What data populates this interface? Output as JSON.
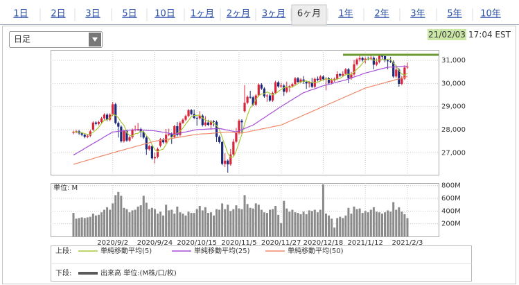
{
  "tabs": [
    "1日",
    "2日",
    "3日",
    "5日",
    "10日",
    "1ヶ月",
    "2ヶ月",
    "3ヶ月",
    "6ヶ月",
    "1年",
    "2年",
    "3年",
    "5年",
    "10年"
  ],
  "active_tab": 8,
  "dropdown": "日足",
  "timestamp": {
    "date": "21/02/03",
    "time": "17:04 EST"
  },
  "chart_data": [
    {
      "type": "candlestick",
      "legend_title": "上段:",
      "up_color": "#d8253c",
      "down_color": "#1b2a7a",
      "grid": true,
      "ylim": [
        26050,
        31450
      ],
      "yticks": [
        {
          "value": 27000,
          "label": "27,000"
        },
        {
          "value": 28000,
          "label": "28,000"
        },
        {
          "value": 29000,
          "label": "29,000"
        },
        {
          "value": 30000,
          "label": "30,000"
        },
        {
          "value": 31000,
          "label": "31,000"
        }
      ],
      "open": [
        27860,
        27900,
        27930,
        27840,
        27780,
        27690,
        27740,
        28000,
        28310,
        28250,
        28330,
        28490,
        28650,
        28430,
        28650,
        29100,
        28290,
        28130,
        27500,
        27940,
        27530,
        27670,
        27990,
        28000,
        28030,
        27900,
        27660,
        27150,
        27290,
        26760,
        26820,
        27300,
        27580,
        27450,
        27780,
        27820,
        27680,
        28150,
        27770,
        28300,
        28430,
        28590,
        28840,
        28680,
        28510,
        28490,
        28610,
        28200,
        28310,
        28210,
        28360,
        28340,
        27690,
        27460,
        26520,
        26660,
        26500,
        26930,
        27480,
        27850,
        28390,
        28800,
        29160,
        29420,
        29400,
        29080,
        29480,
        29950,
        29780,
        29440,
        29480,
        29260,
        29590,
        30050,
        29870,
        29910,
        29640,
        29820,
        29880,
        29970,
        30220,
        30070,
        30170,
        30070,
        30000,
        30050,
        29860,
        30200,
        30150,
        30300,
        30180,
        30220,
        30020,
        30130,
        30200,
        30400,
        30340,
        30410,
        30610,
        30220,
        30390,
        30830,
        31040,
        31100,
        31010,
        31070,
        31060,
        31110,
        30810,
        30930,
        31190,
        31180,
        31000,
        30960,
        30940,
        30300,
        30600,
        29980,
        30210,
        30690
      ],
      "high": [
        27960,
        27990,
        27990,
        27900,
        27840,
        27800,
        27990,
        28370,
        28370,
        28390,
        28550,
        28710,
        28710,
        28710,
        29200,
        29160,
        28350,
        28190,
        28000,
        28000,
        27730,
        28050,
        28180,
        28290,
        28090,
        27960,
        27720,
        27350,
        27350,
        27010,
        27230,
        27640,
        27640,
        28030,
        28040,
        27880,
        28210,
        28330,
        28360,
        28490,
        28650,
        28900,
        28900,
        28870,
        28570,
        28800,
        28670,
        28580,
        28430,
        28420,
        28420,
        28400,
        27750,
        27520,
        26980,
        26720,
        27160,
        27600,
        28080,
        28450,
        28450,
        29930,
        29480,
        29680,
        29460,
        29540,
        30010,
        30010,
        29840,
        29540,
        29540,
        29650,
        30120,
        30110,
        30030,
        29970,
        30080,
        29940,
        30030,
        30280,
        30280,
        30230,
        30320,
        30130,
        30110,
        30240,
        30260,
        30300,
        30360,
        30360,
        30280,
        30280,
        30230,
        30260,
        30530,
        30460,
        30530,
        30670,
        30670,
        30500,
        31020,
        31100,
        31190,
        31160,
        31130,
        31160,
        31230,
        31170,
        31080,
        31270,
        31250,
        31240,
        31060,
        31150,
        31000,
        30800,
        30660,
        30320,
        30790,
        30900
      ],
      "low": [
        27800,
        27840,
        27780,
        27720,
        27630,
        27630,
        27680,
        27940,
        28190,
        28190,
        28270,
        28430,
        28370,
        28370,
        28590,
        28230,
        27660,
        27440,
        27440,
        27470,
        27470,
        27610,
        27930,
        27940,
        27670,
        27600,
        26910,
        27090,
        26700,
        26540,
        26760,
        27240,
        27390,
        27390,
        27720,
        27380,
        27620,
        27710,
        27710,
        28240,
        28370,
        28530,
        28620,
        28450,
        28170,
        28430,
        28140,
        28140,
        28150,
        28000,
        28140,
        27460,
        27400,
        26460,
        26380,
        26140,
        26440,
        26870,
        27420,
        27790,
        27860,
        28740,
        29100,
        29340,
        29020,
        29020,
        29420,
        29720,
        29380,
        29210,
        29200,
        29200,
        29530,
        29810,
        29810,
        29460,
        29580,
        29630,
        29820,
        29910,
        30010,
        30010,
        29980,
        29760,
        29820,
        29800,
        29800,
        30090,
        30090,
        30120,
        29700,
        29960,
        29960,
        30070,
        30140,
        30280,
        30280,
        30350,
        30010,
        30160,
        30330,
        30770,
        30950,
        30950,
        30860,
        31000,
        31000,
        30610,
        30750,
        30870,
        31040,
        30920,
        30610,
        30880,
        30240,
        30240,
        29860,
        29920,
        30150,
        30630
      ],
      "close": [
        27900,
        27930,
        27840,
        27780,
        27690,
        27740,
        27930,
        28310,
        28250,
        28330,
        28490,
        28650,
        28430,
        28650,
        29100,
        28290,
        28130,
        27500,
        27940,
        27530,
        27670,
        27990,
        28000,
        28030,
        27900,
        27660,
        27150,
        27290,
        26760,
        26820,
        27170,
        27580,
        27450,
        27780,
        27820,
        27680,
        28150,
        27770,
        28300,
        28430,
        28590,
        28840,
        28680,
        28510,
        28490,
        28610,
        28200,
        28310,
        28210,
        28360,
        28340,
        27690,
        27460,
        26520,
        26660,
        26500,
        26930,
        27480,
        27850,
        28390,
        28320,
        29160,
        29420,
        29400,
        29080,
        29480,
        29950,
        29780,
        29440,
        29480,
        29260,
        29590,
        30050,
        29870,
        29910,
        29640,
        29820,
        29880,
        29970,
        30220,
        30070,
        30170,
        30070,
        30000,
        30050,
        29860,
        30200,
        30150,
        30300,
        30180,
        30220,
        30020,
        30130,
        30200,
        30400,
        30340,
        30410,
        30610,
        30220,
        30390,
        30830,
        31040,
        31100,
        31010,
        31070,
        31060,
        31110,
        30810,
        30930,
        31190,
        31180,
        31000,
        30960,
        30940,
        30300,
        30600,
        29980,
        30210,
        30690,
        30720
      ],
      "series": [
        {
          "name": "単純移動平均(5)",
          "color": "#a8c83a",
          "values": [
            27900,
            27900,
            27890,
            27870,
            27830,
            27800,
            27800,
            27890,
            27980,
            28110,
            28260,
            28410,
            28430,
            28510,
            28660,
            28620,
            28520,
            28330,
            28190,
            27880,
            27750,
            27730,
            27830,
            27840,
            27920,
            27920,
            27750,
            27610,
            27350,
            27140,
            27040,
            27120,
            27160,
            27360,
            27560,
            27660,
            27780,
            27840,
            27940,
            28070,
            28250,
            28390,
            28570,
            28610,
            28620,
            28630,
            28500,
            28420,
            28360,
            28340,
            28280,
            28180,
            28010,
            27670,
            27330,
            26970,
            26810,
            26820,
            27080,
            27430,
            27790,
            28240,
            28630,
            28940,
            29080,
            29310,
            29470,
            29540,
            29550,
            29630,
            29580,
            29510,
            29560,
            29650,
            29740,
            29810,
            29860,
            29820,
            29840,
            29910,
            29990,
            30060,
            30100,
            30110,
            30070,
            30030,
            30040,
            30050,
            30110,
            30140,
            30210,
            30170,
            30170,
            30150,
            30190,
            30220,
            30300,
            30390,
            30400,
            30390,
            30490,
            30620,
            30720,
            30870,
            31010,
            31060,
            31070,
            31010,
            31000,
            31020,
            31040,
            31020,
            31050,
            31050,
            30880,
            30760,
            30560,
            30410,
            30360,
            30440
          ]
        },
        {
          "name": "単純移動平均(25)",
          "color": "#a64fd6",
          "values": [
            26900,
            26970,
            27040,
            27110,
            27190,
            27260,
            27330,
            27400,
            27470,
            27540,
            27610,
            27690,
            27760,
            27830,
            27900,
            27910,
            27930,
            27940,
            27950,
            27960,
            27980,
            27990,
            28000,
            27990,
            27990,
            27980,
            27970,
            27960,
            27960,
            27950,
            27930,
            27910,
            27890,
            27870,
            27840,
            27820,
            27800,
            27830,
            27850,
            27880,
            27900,
            27930,
            27950,
            27980,
            28000,
            28010,
            28010,
            28020,
            28030,
            28030,
            28040,
            28040,
            28050,
            28030,
            28000,
            27980,
            27950,
            27930,
            27900,
            27950,
            28000,
            28050,
            28100,
            28150,
            28200,
            28280,
            28360,
            28440,
            28520,
            28600,
            28680,
            28760,
            28840,
            28920,
            29000,
            29080,
            29150,
            29230,
            29300,
            29380,
            29450,
            29530,
            29600,
            29640,
            29690,
            29730,
            29770,
            29810,
            29860,
            29900,
            29930,
            29960,
            29990,
            30030,
            30060,
            30090,
            30120,
            30150,
            30190,
            30240,
            30280,
            30320,
            30360,
            30410,
            30450,
            30480,
            30510,
            30540,
            30580,
            30610,
            30640,
            30670,
            30700,
            30710,
            30710,
            30720,
            30730,
            30740,
            30740,
            30750
          ]
        },
        {
          "name": "単純移動平均(50)",
          "color": "#f0896a",
          "values": [
            26500,
            26540,
            26570,
            26610,
            26640,
            26680,
            26710,
            26750,
            26790,
            26820,
            26860,
            26890,
            26930,
            26960,
            27000,
            27030,
            27070,
            27100,
            27130,
            27170,
            27200,
            27230,
            27270,
            27300,
            27330,
            27370,
            27400,
            27430,
            27470,
            27500,
            27520,
            27540,
            27560,
            27580,
            27600,
            27620,
            27640,
            27660,
            27680,
            27700,
            27720,
            27740,
            27760,
            27780,
            27800,
            27810,
            27820,
            27820,
            27830,
            27840,
            27850,
            27860,
            27870,
            27880,
            27890,
            27900,
            27890,
            27880,
            27870,
            27860,
            27850,
            27880,
            27900,
            27930,
            27950,
            27980,
            28000,
            28030,
            28050,
            28080,
            28100,
            28130,
            28150,
            28180,
            28200,
            28250,
            28310,
            28360,
            28410,
            28470,
            28520,
            28570,
            28630,
            28680,
            28730,
            28790,
            28840,
            28890,
            28950,
            29000,
            29050,
            29110,
            29160,
            29210,
            29270,
            29320,
            29370,
            29430,
            29480,
            29530,
            29590,
            29640,
            29690,
            29750,
            29800,
            29830,
            29870,
            29900,
            29930,
            29970,
            30000,
            30030,
            30070,
            30100,
            30130,
            30170,
            30200,
            30230,
            30270,
            30300
          ]
        }
      ]
    },
    {
      "type": "bar",
      "unit_label": "単位: M",
      "legend_title": "下段:",
      "grid": true,
      "ylim": [
        0,
        840
      ],
      "yticks": [
        {
          "value": 200,
          "label": "200M"
        },
        {
          "value": 400,
          "label": "400M"
        },
        {
          "value": 600,
          "label": "600M"
        },
        {
          "value": 800,
          "label": "800M"
        }
      ],
      "categories": [
        null,
        null,
        null,
        null,
        null,
        null,
        null,
        null,
        null,
        null,
        null,
        null,
        null,
        null,
        "2020/9/2",
        null,
        null,
        null,
        null,
        null,
        null,
        null,
        null,
        null,
        null,
        null,
        null,
        null,
        null,
        "2020/9/24",
        null,
        null,
        null,
        null,
        null,
        null,
        null,
        null,
        null,
        null,
        null,
        null,
        null,
        null,
        "2020/10/15",
        null,
        null,
        null,
        null,
        null,
        null,
        null,
        null,
        null,
        null,
        null,
        null,
        null,
        null,
        "2020/11/5",
        null,
        null,
        null,
        null,
        null,
        null,
        null,
        null,
        null,
        null,
        null,
        null,
        null,
        null,
        "2020/11/27",
        null,
        null,
        null,
        null,
        null,
        null,
        null,
        null,
        null,
        null,
        null,
        null,
        null,
        null,
        "2020/12/18",
        null,
        null,
        null,
        null,
        null,
        null,
        null,
        null,
        null,
        null,
        null,
        null,
        null,
        null,
        "2021/1/12",
        null,
        null,
        null,
        null,
        null,
        null,
        null,
        null,
        null,
        null,
        null,
        null,
        null,
        null,
        "2021/2/3"
      ],
      "series": [
        {
          "name": "出来高 単位:(M株/口/枚)",
          "color": "#8a8a8a",
          "legend_color": "#5a5a5a",
          "values": [
            370,
            280,
            290,
            300,
            290,
            300,
            310,
            360,
            330,
            340,
            380,
            420,
            460,
            420,
            520,
            650,
            700,
            640,
            450,
            430,
            380,
            410,
            420,
            470,
            490,
            640,
            530,
            430,
            450,
            430,
            360,
            390,
            330,
            500,
            410,
            420,
            360,
            470,
            380,
            360,
            330,
            390,
            370,
            370,
            430,
            480,
            410,
            460,
            370,
            380,
            330,
            430,
            420,
            520,
            430,
            500,
            400,
            430,
            490,
            440,
            430,
            650,
            510,
            450,
            440,
            520,
            500,
            420,
            380,
            370,
            420,
            430,
            480,
            340,
            210,
            560,
            440,
            390,
            420,
            380,
            370,
            350,
            390,
            350,
            410,
            400,
            420,
            380,
            420,
            820,
            360,
            330,
            280,
            140,
            290,
            310,
            290,
            330,
            450,
            360,
            470,
            430,
            440,
            370,
            400,
            380,
            420,
            460,
            390,
            380,
            360,
            380,
            410,
            390,
            540,
            420,
            460,
            390,
            350,
            290
          ]
        }
      ]
    }
  ]
}
